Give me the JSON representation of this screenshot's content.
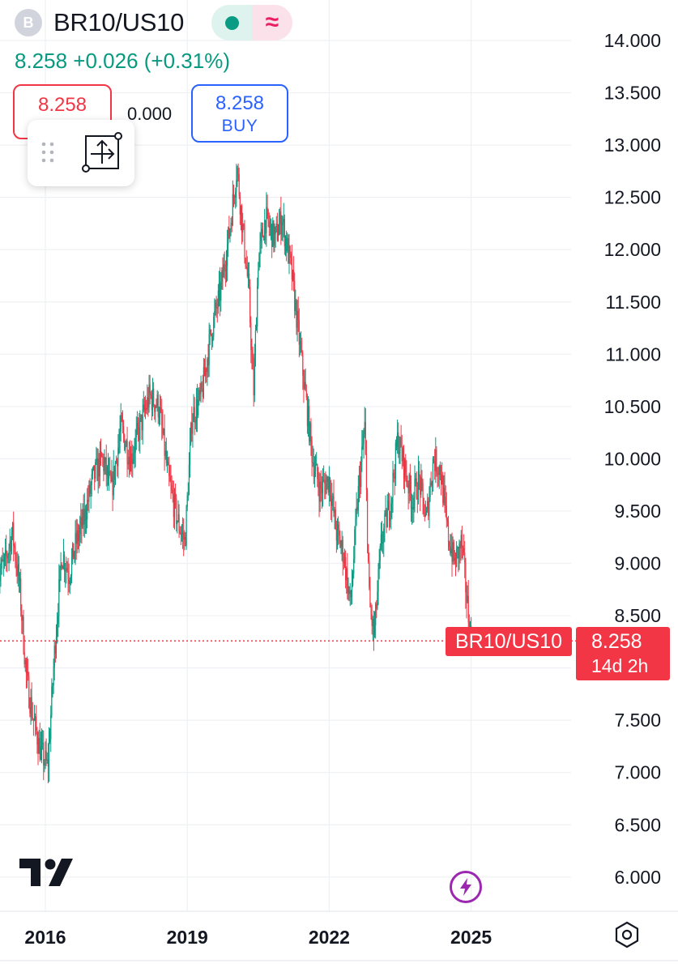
{
  "header": {
    "symbol_initial": "B",
    "symbol": "BR10/US10",
    "last_price": "8.258",
    "change": "+0.026",
    "change_pct": "(+0.31%)",
    "status_dot_color": "#0a9b84",
    "wave_glyph": "≈",
    "price_line": "8.258 +0.026 (+0.31%)"
  },
  "trade": {
    "sell_price": "8.258",
    "spread": "0.000",
    "buy_price": "8.258",
    "buy_label": "BUY"
  },
  "toolbar": {
    "drag_icon": "grip-dots-icon",
    "tool_icon": "measure-tool-icon"
  },
  "price_tag": {
    "symbol": "BR10/US10",
    "price": "8.258",
    "countdown": "14d 2h",
    "color": "#f23645"
  },
  "colors": {
    "up": "#089981",
    "down": "#f23645",
    "grid": "#eef0f3",
    "axis_text": "#131722"
  },
  "chart_data": {
    "type": "candlestick",
    "title": "",
    "xlabel": "",
    "ylabel": "",
    "ylim": [
      5.8,
      14.3
    ],
    "xlim": [
      2015.0,
      2025.8
    ],
    "y_ticks": [
      "14.000",
      "13.500",
      "13.000",
      "12.500",
      "12.000",
      "11.500",
      "11.000",
      "10.500",
      "10.000",
      "9.500",
      "9.000",
      "8.500",
      "8.000",
      "7.500",
      "7.000",
      "6.500",
      "6.000"
    ],
    "x_ticks": [
      "2016",
      "2019",
      "2022",
      "2025"
    ],
    "x_tick_values": [
      2016,
      2019,
      2022,
      2025
    ],
    "grid": true,
    "last_price": 8.258,
    "price_trend": [
      [
        2015.0,
        8.9
      ],
      [
        2015.15,
        9.0
      ],
      [
        2015.3,
        9.3
      ],
      [
        2015.45,
        8.8
      ],
      [
        2015.6,
        7.9
      ],
      [
        2015.75,
        7.5
      ],
      [
        2015.9,
        7.2
      ],
      [
        2016.05,
        7.05
      ],
      [
        2016.2,
        8.2
      ],
      [
        2016.35,
        9.1
      ],
      [
        2016.5,
        8.9
      ],
      [
        2016.65,
        9.2
      ],
      [
        2016.8,
        9.4
      ],
      [
        2017.0,
        9.8
      ],
      [
        2017.2,
        10.0
      ],
      [
        2017.4,
        9.7
      ],
      [
        2017.6,
        10.3
      ],
      [
        2017.8,
        10.0
      ],
      [
        2018.0,
        10.3
      ],
      [
        2018.2,
        10.6
      ],
      [
        2018.4,
        10.5
      ],
      [
        2018.6,
        9.8
      ],
      [
        2018.8,
        9.4
      ],
      [
        2018.95,
        9.2
      ],
      [
        2019.1,
        10.4
      ],
      [
        2019.3,
        10.6
      ],
      [
        2019.5,
        11.2
      ],
      [
        2019.7,
        11.6
      ],
      [
        2019.9,
        12.2
      ],
      [
        2020.05,
        12.8
      ],
      [
        2020.15,
        12.3
      ],
      [
        2020.3,
        11.6
      ],
      [
        2020.4,
        10.6
      ],
      [
        2020.5,
        11.9
      ],
      [
        2020.65,
        12.3
      ],
      [
        2020.85,
        12.1
      ],
      [
        2021.0,
        12.3
      ],
      [
        2021.2,
        11.8
      ],
      [
        2021.35,
        11.2
      ],
      [
        2021.5,
        10.6
      ],
      [
        2021.65,
        10.0
      ],
      [
        2021.8,
        9.7
      ],
      [
        2022.0,
        9.8
      ],
      [
        2022.15,
        9.3
      ],
      [
        2022.3,
        9.1
      ],
      [
        2022.45,
        8.6
      ],
      [
        2022.6,
        9.6
      ],
      [
        2022.75,
        10.3
      ],
      [
        2022.85,
        8.6
      ],
      [
        2022.95,
        8.3
      ],
      [
        2023.1,
        9.2
      ],
      [
        2023.3,
        9.6
      ],
      [
        2023.45,
        10.2
      ],
      [
        2023.6,
        9.9
      ],
      [
        2023.75,
        9.6
      ],
      [
        2023.9,
        9.8
      ],
      [
        2024.05,
        9.4
      ],
      [
        2024.2,
        10.0
      ],
      [
        2024.35,
        9.9
      ],
      [
        2024.5,
        9.3
      ],
      [
        2024.65,
        9.0
      ],
      [
        2024.8,
        9.2
      ],
      [
        2024.9,
        8.7
      ],
      [
        2025.0,
        8.258
      ]
    ]
  }
}
